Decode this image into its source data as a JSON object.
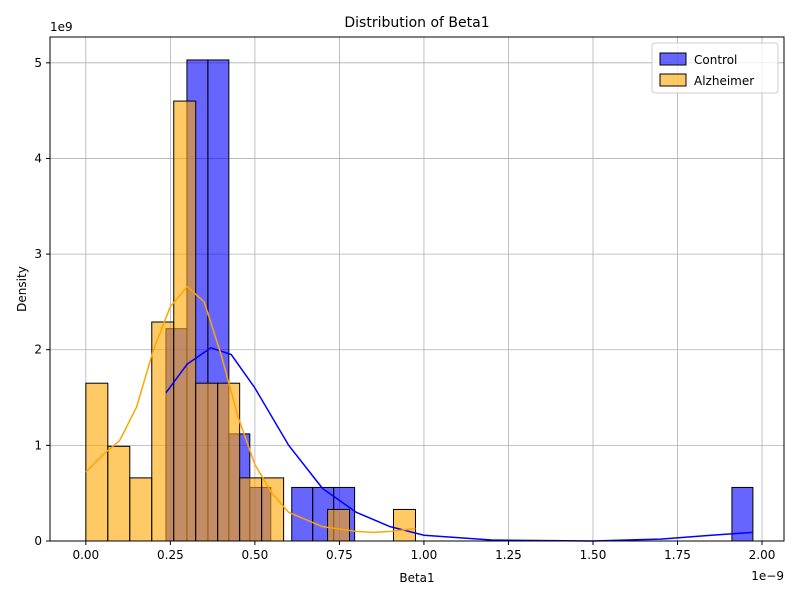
{
  "chart_data": {
    "type": "histogram",
    "title": "Distribution of Beta1",
    "xlabel": "Beta1",
    "ylabel": "Density",
    "x_offset_label": "1e−9",
    "y_offset_label": "1e9",
    "xlim": [
      -0.106,
      2.065
    ],
    "ylim": [
      0,
      5.27
    ],
    "xticks": [
      {
        "value": 0,
        "label": "0.00"
      },
      {
        "value": 0.25,
        "label": "0.25"
      },
      {
        "value": 0.5,
        "label": "0.50"
      },
      {
        "value": 0.75,
        "label": "0.75"
      },
      {
        "value": 1.0,
        "label": "1.00"
      },
      {
        "value": 1.25,
        "label": "1.25"
      },
      {
        "value": 1.5,
        "label": "1.50"
      },
      {
        "value": 1.75,
        "label": "1.75"
      },
      {
        "value": 2.0,
        "label": "2.00"
      }
    ],
    "yticks": [
      0,
      1,
      2,
      3,
      4,
      5
    ],
    "grid": true,
    "legend": "upper right",
    "alpha": 0.6,
    "series": [
      {
        "name": "Control",
        "color": "blue",
        "bins": [
          0.237,
          0.299,
          0.361,
          0.423,
          0.485,
          0.547,
          0.609,
          0.671,
          0.733,
          0.795,
          0.857,
          0.919,
          0.981,
          1.043,
          1.105,
          1.167,
          1.229,
          1.291,
          1.353,
          1.415,
          1.477,
          1.539,
          1.601,
          1.663,
          1.725,
          1.787,
          1.849,
          1.911,
          1.973
        ],
        "values": [
          2.22,
          5.03,
          5.03,
          1.12,
          0.56,
          0,
          0.56,
          0.56,
          0.56,
          0,
          0,
          0,
          0,
          0,
          0,
          0,
          0,
          0,
          0,
          0,
          0,
          0,
          0,
          0,
          0,
          0,
          0,
          0.56
        ],
        "kde": {
          "x": [
            0.237,
            0.3,
            0.37,
            0.43,
            0.5,
            0.6,
            0.7,
            0.8,
            0.9,
            1.0,
            1.2,
            1.5,
            1.7,
            1.85,
            1.973
          ],
          "values": [
            1.55,
            1.85,
            2.02,
            1.95,
            1.6,
            1.0,
            0.55,
            0.3,
            0.15,
            0.06,
            0.01,
            0.0,
            0.02,
            0.06,
            0.09
          ]
        }
      },
      {
        "name": "Alzheimer",
        "color": "orange",
        "bins": [
          0,
          0.065,
          0.13,
          0.195,
          0.26,
          0.325,
          0.39,
          0.455,
          0.52,
          0.585,
          0.65,
          0.715,
          0.78,
          0.845,
          0.91,
          0.975
        ],
        "values": [
          1.65,
          0.99,
          0.66,
          2.29,
          4.6,
          1.65,
          1.65,
          0.66,
          0.66,
          0,
          0,
          0.33,
          0,
          0,
          0.33
        ],
        "kde": {
          "x": [
            0,
            0.05,
            0.1,
            0.15,
            0.2,
            0.25,
            0.3,
            0.35,
            0.4,
            0.45,
            0.5,
            0.55,
            0.6,
            0.7,
            0.8,
            0.85,
            0.9,
            0.975
          ],
          "values": [
            0.72,
            0.9,
            1.05,
            1.4,
            2.0,
            2.45,
            2.66,
            2.5,
            1.95,
            1.3,
            0.8,
            0.5,
            0.3,
            0.15,
            0.1,
            0.09,
            0.1,
            0.13
          ]
        }
      }
    ]
  }
}
